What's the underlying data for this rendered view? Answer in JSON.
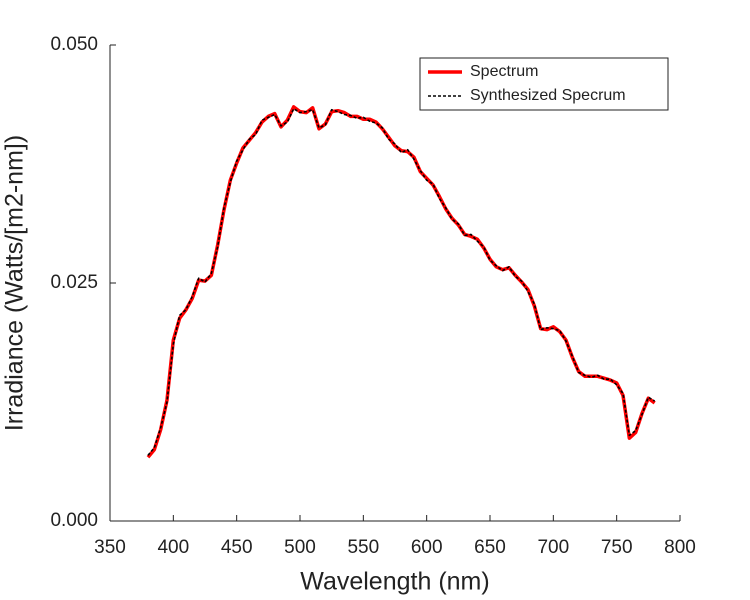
{
  "chart_data": {
    "type": "line",
    "x_label": "Wavelength (nm)",
    "y_label": "Irradiance (Watts/[m2-nm])",
    "x": [
      380,
      385,
      390,
      395,
      400,
      405,
      410,
      415,
      420,
      425,
      430,
      435,
      440,
      445,
      450,
      455,
      460,
      465,
      470,
      475,
      480,
      485,
      490,
      495,
      500,
      505,
      510,
      515,
      520,
      525,
      530,
      535,
      540,
      545,
      550,
      555,
      560,
      565,
      570,
      575,
      580,
      585,
      590,
      595,
      600,
      605,
      610,
      615,
      620,
      625,
      630,
      635,
      640,
      645,
      650,
      655,
      660,
      665,
      670,
      675,
      680,
      685,
      690,
      695,
      700,
      705,
      710,
      715,
      720,
      725,
      730,
      735,
      740,
      745,
      750,
      755,
      760,
      765,
      770,
      775,
      780
    ],
    "series": [
      {
        "name": "Spectrum",
        "color": "#ff0000",
        "style": "solid",
        "values": [
          0.0067,
          0.0075,
          0.0096,
          0.0127,
          0.019,
          0.0213,
          0.0222,
          0.0234,
          0.0253,
          0.0252,
          0.0258,
          0.029,
          0.0327,
          0.0358,
          0.0376,
          0.0392,
          0.04,
          0.0408,
          0.0419,
          0.0425,
          0.0428,
          0.0414,
          0.0421,
          0.0435,
          0.043,
          0.0429,
          0.0434,
          0.0412,
          0.0417,
          0.043,
          0.0431,
          0.0429,
          0.0425,
          0.0425,
          0.0422,
          0.0422,
          0.0419,
          0.0412,
          0.0403,
          0.0394,
          0.0389,
          0.0388,
          0.0382,
          0.0367,
          0.036,
          0.0353,
          0.0341,
          0.0328,
          0.0318,
          0.0311,
          0.0301,
          0.0299,
          0.0296,
          0.0287,
          0.0275,
          0.0267,
          0.0264,
          0.0266,
          0.0258,
          0.0251,
          0.0243,
          0.0226,
          0.0202,
          0.0201,
          0.0204,
          0.0199,
          0.019,
          0.0172,
          0.0157,
          0.0152,
          0.0152,
          0.0152,
          0.015,
          0.0148,
          0.0145,
          0.0132,
          0.0087,
          0.0093,
          0.0113,
          0.0129,
          0.0124
        ]
      },
      {
        "name": "Synthesized Specrum",
        "color": "#000000",
        "style": "dashed",
        "values": [
          0.0069,
          0.0077,
          0.0098,
          0.0125,
          0.0186,
          0.0216,
          0.0222,
          0.0236,
          0.0255,
          0.0251,
          0.026,
          0.0288,
          0.0329,
          0.0356,
          0.0378,
          0.039,
          0.0401,
          0.0406,
          0.0421,
          0.0424,
          0.0427,
          0.0415,
          0.0419,
          0.0433,
          0.0429,
          0.043,
          0.0432,
          0.0413,
          0.0416,
          0.0432,
          0.043,
          0.0427,
          0.0426,
          0.0423,
          0.0424,
          0.042,
          0.0418,
          0.0413,
          0.0401,
          0.0396,
          0.0387,
          0.039,
          0.038,
          0.0368,
          0.0358,
          0.0354,
          0.0339,
          0.0329,
          0.0317,
          0.0312,
          0.03,
          0.0301,
          0.0294,
          0.0288,
          0.0274,
          0.0268,
          0.0263,
          0.0267,
          0.0257,
          0.0252,
          0.0241,
          0.0228,
          0.0201,
          0.0203,
          0.0202,
          0.02,
          0.0189,
          0.0173,
          0.0156,
          0.0153,
          0.0151,
          0.0153,
          0.0149,
          0.0149,
          0.0143,
          0.0134,
          0.009,
          0.0095,
          0.0112,
          0.013,
          0.0126
        ]
      }
    ],
    "xlim": [
      350,
      800
    ],
    "xticks": [
      350,
      400,
      450,
      500,
      550,
      600,
      650,
      700,
      750,
      800
    ],
    "ylim": [
      0,
      0.05
    ],
    "yticks": [
      {
        "value": 0,
        "label": "0.000"
      },
      {
        "value": 0.025,
        "label": "0.025"
      },
      {
        "value": 0.05,
        "label": "0.050"
      }
    ],
    "legend": "upper right"
  }
}
